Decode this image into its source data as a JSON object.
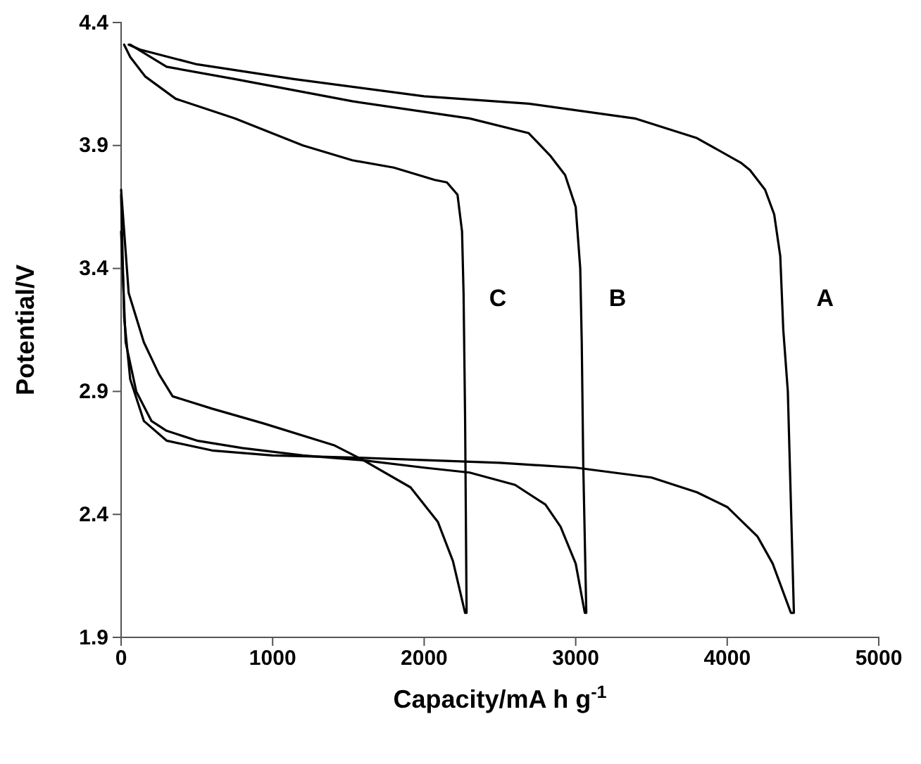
{
  "chart_data": {
    "type": "line",
    "xlabel": "Capacity/mA h g$^{-1}$",
    "ylabel": "Potential/V",
    "xlim": [
      0,
      5000
    ],
    "xticks": [
      0,
      1000,
      2000,
      3000,
      4000,
      5000
    ],
    "ylim": [
      1.9,
      4.4
    ],
    "yticks": [
      {
        "value": 1.9,
        "label": "1.9"
      },
      {
        "value": 2.4,
        "label": "2.4"
      },
      {
        "value": 2.9,
        "label": "2.9"
      },
      {
        "value": 3.4,
        "label": "3.4"
      },
      {
        "value": 3.9,
        "label": "3.9"
      },
      {
        "value": 4.4,
        "label": "4.4"
      }
    ],
    "grid": false,
    "marker": "none",
    "line_style": "solid",
    "series": [
      {
        "name": "A",
        "color": "#000000",
        "x": [
          0,
          20,
          60,
          150,
          300,
          600,
          1000,
          1600,
          2500,
          3000,
          3500,
          3800,
          4000,
          4200,
          4300,
          4420,
          4440,
          4400,
          4370,
          4350,
          4310,
          4250,
          4150,
          4090,
          3800,
          3390,
          2690,
          2000,
          1140,
          500,
          125,
          50
        ],
        "values": [
          3.7,
          3.2,
          2.95,
          2.78,
          2.7,
          2.66,
          2.64,
          2.63,
          2.61,
          2.59,
          2.55,
          2.49,
          2.43,
          2.31,
          2.2,
          2.0,
          2.0,
          2.9,
          3.15,
          3.45,
          3.62,
          3.72,
          3.8,
          3.83,
          3.93,
          4.01,
          4.07,
          4.1,
          4.17,
          4.23,
          4.29,
          4.31
        ]
      },
      {
        "name": "B",
        "color": "#000000",
        "x": [
          0,
          30,
          100,
          200,
          300,
          500,
          800,
          1200,
          1600,
          2000,
          2300,
          2600,
          2800,
          2900,
          3000,
          3060,
          3070,
          3050,
          3040,
          3030,
          3000,
          2930,
          2830,
          2690,
          2300,
          1525,
          750,
          300,
          60
        ],
        "values": [
          3.55,
          3.1,
          2.9,
          2.78,
          2.74,
          2.7,
          2.67,
          2.64,
          2.62,
          2.59,
          2.57,
          2.52,
          2.44,
          2.35,
          2.2,
          2.0,
          2.0,
          2.6,
          3.1,
          3.4,
          3.65,
          3.78,
          3.86,
          3.95,
          4.01,
          4.08,
          4.17,
          4.22,
          4.31
        ]
      },
      {
        "name": "C",
        "color": "#000000",
        "x": [
          0,
          50,
          150,
          250,
          340,
          600,
          940,
          1410,
          1600,
          1910,
          2090,
          2190,
          2270,
          2280,
          2270,
          2260,
          2250,
          2220,
          2150,
          2070,
          1800,
          1525,
          1200,
          750,
          360,
          160,
          60,
          20
        ],
        "values": [
          3.72,
          3.3,
          3.1,
          2.97,
          2.88,
          2.83,
          2.77,
          2.68,
          2.62,
          2.51,
          2.37,
          2.21,
          2.0,
          2.0,
          2.8,
          3.3,
          3.55,
          3.7,
          3.75,
          3.76,
          3.81,
          3.84,
          3.9,
          4.01,
          4.09,
          4.18,
          4.26,
          4.31
        ]
      }
    ]
  }
}
